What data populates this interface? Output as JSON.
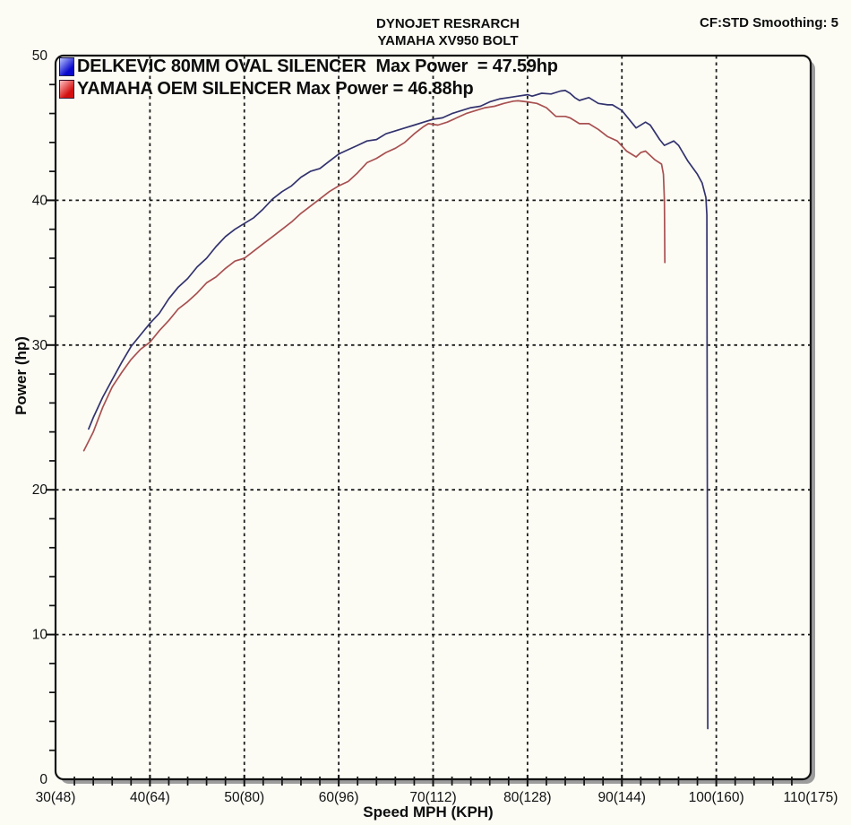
{
  "chart_data": {
    "type": "line",
    "title": "DYNOJET RESRARCH",
    "subtitle": "YAMAHA XV950 BOLT",
    "annotation": "CF:STD Smoothing: 5",
    "legend": [
      {
        "label": "DELKEVIC 80MM OVAL SILENCER  Max Power  = 47.59hp",
        "swatch_light": "#b9c4ff",
        "swatch_dark": "#0a0acc"
      },
      {
        "label": "YAMAHA OEM SILENCER Max Power = 46.88hp",
        "swatch_light": "#ffc2c2",
        "swatch_dark": "#d40f0f"
      }
    ],
    "x": {
      "label": "Speed MPH (KPH)",
      "min": 30,
      "max": 110,
      "major_step": 10,
      "minor_step": 2,
      "tick_labels": [
        "30(48)",
        "40(64)",
        "50(80)",
        "60(96)",
        "70(112)",
        "80(128)",
        "90(144)",
        "100(160)",
        "110(175)"
      ]
    },
    "y": {
      "label": "Power (hp)",
      "min": 0,
      "max": 50,
      "major_step": 10,
      "minor_step": 2,
      "tick_labels": [
        "0",
        "10",
        "20",
        "30",
        "40",
        "50"
      ]
    },
    "grid": {
      "style": "dashed",
      "color": "#1c1c1c"
    },
    "series": [
      {
        "name": "DELKEVIC 80MM OVAL SILENCER",
        "max_power_hp": 47.59,
        "color": "#32326e",
        "points": [
          [
            33.5,
            24.2
          ],
          [
            34,
            25.0
          ],
          [
            35,
            26.4
          ],
          [
            36,
            27.6
          ],
          [
            37,
            28.8
          ],
          [
            38,
            29.9
          ],
          [
            39,
            30.7
          ],
          [
            40,
            31.5
          ],
          [
            41,
            32.2
          ],
          [
            42,
            33.2
          ],
          [
            43,
            34.0
          ],
          [
            44,
            34.6
          ],
          [
            45,
            35.4
          ],
          [
            46,
            36.0
          ],
          [
            47,
            36.8
          ],
          [
            48,
            37.5
          ],
          [
            49,
            38.0
          ],
          [
            50,
            38.4
          ],
          [
            51,
            38.8
          ],
          [
            52,
            39.4
          ],
          [
            53,
            40.1
          ],
          [
            54,
            40.6
          ],
          [
            55,
            41.0
          ],
          [
            56,
            41.6
          ],
          [
            57,
            42.0
          ],
          [
            58,
            42.2
          ],
          [
            59,
            42.7
          ],
          [
            60,
            43.2
          ],
          [
            61,
            43.5
          ],
          [
            62,
            43.8
          ],
          [
            63,
            44.1
          ],
          [
            64,
            44.2
          ],
          [
            65,
            44.6
          ],
          [
            66,
            44.8
          ],
          [
            67,
            45.0
          ],
          [
            68,
            45.2
          ],
          [
            69,
            45.4
          ],
          [
            70,
            45.6
          ],
          [
            71,
            45.7
          ],
          [
            72,
            46.0
          ],
          [
            73,
            46.2
          ],
          [
            74,
            46.4
          ],
          [
            75,
            46.5
          ],
          [
            76,
            46.8
          ],
          [
            77,
            47.0
          ],
          [
            78,
            47.1
          ],
          [
            79,
            47.2
          ],
          [
            80,
            47.3
          ],
          [
            80.5,
            47.2
          ],
          [
            81.5,
            47.4
          ],
          [
            82.5,
            47.35
          ],
          [
            83.5,
            47.55
          ],
          [
            84,
            47.59
          ],
          [
            84.5,
            47.4
          ],
          [
            85,
            47.1
          ],
          [
            85.5,
            46.9
          ],
          [
            86.5,
            47.1
          ],
          [
            87.5,
            46.7
          ],
          [
            88.5,
            46.6
          ],
          [
            89,
            46.6
          ],
          [
            90,
            46.2
          ],
          [
            91,
            45.4
          ],
          [
            91.5,
            45.0
          ],
          [
            92.5,
            45.4
          ],
          [
            93,
            45.2
          ],
          [
            94,
            44.2
          ],
          [
            94.5,
            43.8
          ],
          [
            95.5,
            44.1
          ],
          [
            96,
            43.8
          ],
          [
            97,
            42.7
          ],
          [
            98,
            41.8
          ],
          [
            98.5,
            41.2
          ],
          [
            98.9,
            40.2
          ],
          [
            99,
            39.0
          ],
          [
            99.05,
            20.0
          ],
          [
            99.1,
            3.5
          ]
        ]
      },
      {
        "name": "YAMAHA OEM SILENCER",
        "max_power_hp": 46.88,
        "color": "#a85050",
        "points": [
          [
            33,
            22.7
          ],
          [
            34,
            24.0
          ],
          [
            35,
            25.7
          ],
          [
            36,
            27.1
          ],
          [
            37,
            28.1
          ],
          [
            38,
            29.0
          ],
          [
            39,
            29.7
          ],
          [
            40,
            30.2
          ],
          [
            41,
            31.0
          ],
          [
            42,
            31.7
          ],
          [
            43,
            32.5
          ],
          [
            44,
            33.0
          ],
          [
            45,
            33.6
          ],
          [
            46,
            34.3
          ],
          [
            47,
            34.7
          ],
          [
            48,
            35.3
          ],
          [
            49,
            35.8
          ],
          [
            50,
            36.0
          ],
          [
            51,
            36.5
          ],
          [
            52,
            37.0
          ],
          [
            53,
            37.5
          ],
          [
            54,
            38.0
          ],
          [
            55,
            38.5
          ],
          [
            56,
            39.1
          ],
          [
            57,
            39.6
          ],
          [
            58,
            40.1
          ],
          [
            59,
            40.6
          ],
          [
            60,
            41.0
          ],
          [
            61,
            41.3
          ],
          [
            62,
            41.9
          ],
          [
            63,
            42.6
          ],
          [
            64,
            42.9
          ],
          [
            65,
            43.3
          ],
          [
            66,
            43.6
          ],
          [
            67,
            44.0
          ],
          [
            68,
            44.6
          ],
          [
            69,
            45.1
          ],
          [
            69.5,
            45.3
          ],
          [
            70.5,
            45.2
          ],
          [
            71.5,
            45.4
          ],
          [
            72.5,
            45.7
          ],
          [
            73.5,
            46.0
          ],
          [
            74.5,
            46.2
          ],
          [
            75.5,
            46.4
          ],
          [
            76.5,
            46.5
          ],
          [
            77.5,
            46.7
          ],
          [
            78.5,
            46.85
          ],
          [
            79,
            46.88
          ],
          [
            80,
            46.8
          ],
          [
            81,
            46.7
          ],
          [
            82,
            46.4
          ],
          [
            83,
            45.8
          ],
          [
            84,
            45.8
          ],
          [
            84.5,
            45.7
          ],
          [
            85.5,
            45.3
          ],
          [
            86.5,
            45.3
          ],
          [
            87.5,
            44.9
          ],
          [
            88.5,
            44.4
          ],
          [
            89.5,
            44.1
          ],
          [
            90.5,
            43.4
          ],
          [
            91.5,
            43.0
          ],
          [
            92,
            43.3
          ],
          [
            92.5,
            43.4
          ],
          [
            93.5,
            42.8
          ],
          [
            94.2,
            42.5
          ],
          [
            94.4,
            41.8
          ],
          [
            94.5,
            40.0
          ],
          [
            94.55,
            35.7
          ]
        ]
      }
    ],
    "frame": {
      "border_color": "#111111",
      "shadow_color": "#9c9c9c",
      "background": "#fcfcf5"
    }
  }
}
